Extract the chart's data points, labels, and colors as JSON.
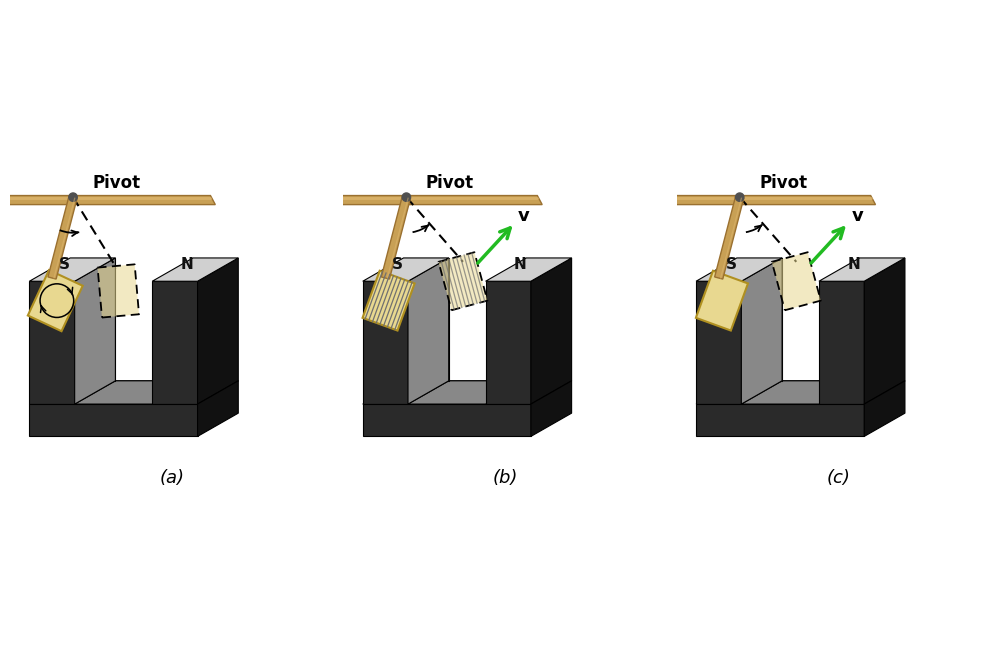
{
  "background_color": "#ffffff",
  "panels": [
    "(a)",
    "(b)",
    "(c)"
  ],
  "pivot_label": "Pivot",
  "v_label": "v",
  "wood_color": "#c8a055",
  "wood_dark": "#9a7030",
  "wood_light": "#e0b870",
  "magnet_front_color": "#2a2a2a",
  "magnet_top_color": "#d0d0d0",
  "magnet_side_color": "#555555",
  "magnet_dark_color": "#111111",
  "magnet_inner_color": "#888888",
  "plate_color": "#e8d890",
  "plate_edge": "#b09020",
  "plate_light": "#f5edc0",
  "pivot_dot_color": "#505050",
  "v_arrow_color": "#22bb22",
  "stripe_color": "#707070",
  "label_color": "#111111"
}
